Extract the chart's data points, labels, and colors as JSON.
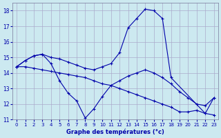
{
  "title": "Graphe des températures (°c)",
  "bg_color": "#cce9f0",
  "grid_color": "#aaaacc",
  "line_color": "#0000aa",
  "xlim": [
    -0.5,
    23.5
  ],
  "ylim": [
    11,
    18.5
  ],
  "yticks": [
    11,
    12,
    13,
    14,
    15,
    16,
    17,
    18
  ],
  "xticks": [
    0,
    1,
    2,
    3,
    4,
    5,
    6,
    7,
    8,
    9,
    10,
    11,
    12,
    13,
    14,
    15,
    16,
    17,
    18,
    19,
    20,
    21,
    22,
    23
  ],
  "series": [
    {
      "x": [
        0,
        1,
        2,
        3,
        4,
        5,
        6,
        7,
        8,
        9,
        10,
        11,
        12,
        13,
        14,
        15,
        16,
        17,
        18,
        19,
        20,
        21,
        22,
        23
      ],
      "y": [
        14.4,
        14.8,
        15.1,
        15.2,
        14.6,
        13.5,
        12.7,
        12.2,
        11.1,
        11.7,
        12.5,
        13.2,
        13.5,
        13.8,
        14.0,
        14.2,
        14.0,
        13.7,
        13.3,
        12.8,
        12.4,
        12.0,
        11.9,
        12.4
      ]
    },
    {
      "x": [
        0,
        1,
        2,
        3,
        4,
        5,
        6,
        7,
        8,
        9,
        10,
        11,
        12,
        13,
        14,
        15,
        16,
        17,
        18,
        22,
        23
      ],
      "y": [
        14.4,
        14.8,
        15.1,
        15.2,
        15.0,
        14.9,
        14.7,
        14.5,
        14.3,
        14.2,
        14.4,
        14.6,
        15.3,
        16.9,
        17.5,
        18.1,
        18.0,
        17.5,
        13.7,
        11.4,
        12.4
      ]
    },
    {
      "x": [
        0,
        1,
        2,
        3,
        4,
        5,
        6,
        7,
        8,
        9,
        10,
        11,
        12,
        13,
        14,
        15,
        16,
        17,
        18,
        19,
        20,
        21,
        22,
        23
      ],
      "y": [
        14.4,
        14.4,
        14.3,
        14.2,
        14.1,
        14.0,
        13.9,
        13.8,
        13.7,
        13.5,
        13.3,
        13.2,
        13.0,
        12.8,
        12.6,
        12.4,
        12.2,
        12.0,
        11.8,
        11.5,
        11.5,
        11.6,
        11.4,
        11.3
      ]
    }
  ]
}
